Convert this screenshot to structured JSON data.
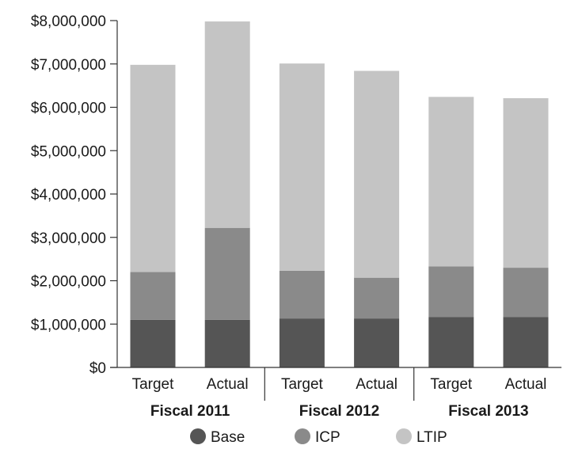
{
  "chart_data": {
    "type": "bar",
    "stacked": true,
    "title": "",
    "xlabel": "",
    "ylabel": "",
    "ylim": [
      0,
      8000000
    ],
    "yticks": [
      0,
      1000000,
      2000000,
      3000000,
      4000000,
      5000000,
      6000000,
      7000000,
      8000000
    ],
    "ytick_labels": [
      "$0",
      "$1,000,000",
      "$2,000,000",
      "$3,000,000",
      "$4,000,000",
      "$5,000,000",
      "$6,000,000",
      "$7,000,000",
      "$8,000,000"
    ],
    "categories": [
      "Target",
      "Actual",
      "Target",
      "Actual",
      "Target",
      "Actual"
    ],
    "groups": [
      {
        "label": "Fiscal 2011",
        "categories": [
          "Target",
          "Actual"
        ]
      },
      {
        "label": "Fiscal 2012",
        "categories": [
          "Target",
          "Actual"
        ]
      },
      {
        "label": "Fiscal 2013",
        "categories": [
          "Target",
          "Actual"
        ]
      }
    ],
    "series": [
      {
        "name": "Base",
        "color": "#555555",
        "values": [
          1100000,
          1100000,
          1130000,
          1130000,
          1160000,
          1160000
        ]
      },
      {
        "name": "ICP",
        "color": "#8a8a8a",
        "values": [
          1100000,
          2120000,
          1100000,
          940000,
          1170000,
          1140000
        ]
      },
      {
        "name": "LTIP",
        "color": "#c4c4c4",
        "values": [
          4780000,
          4760000,
          4780000,
          4770000,
          3910000,
          3910000
        ]
      }
    ],
    "totals": [
      6980000,
      7980000,
      7010000,
      6840000,
      6240000,
      6210000
    ],
    "legend_position": "bottom",
    "grid": false
  }
}
